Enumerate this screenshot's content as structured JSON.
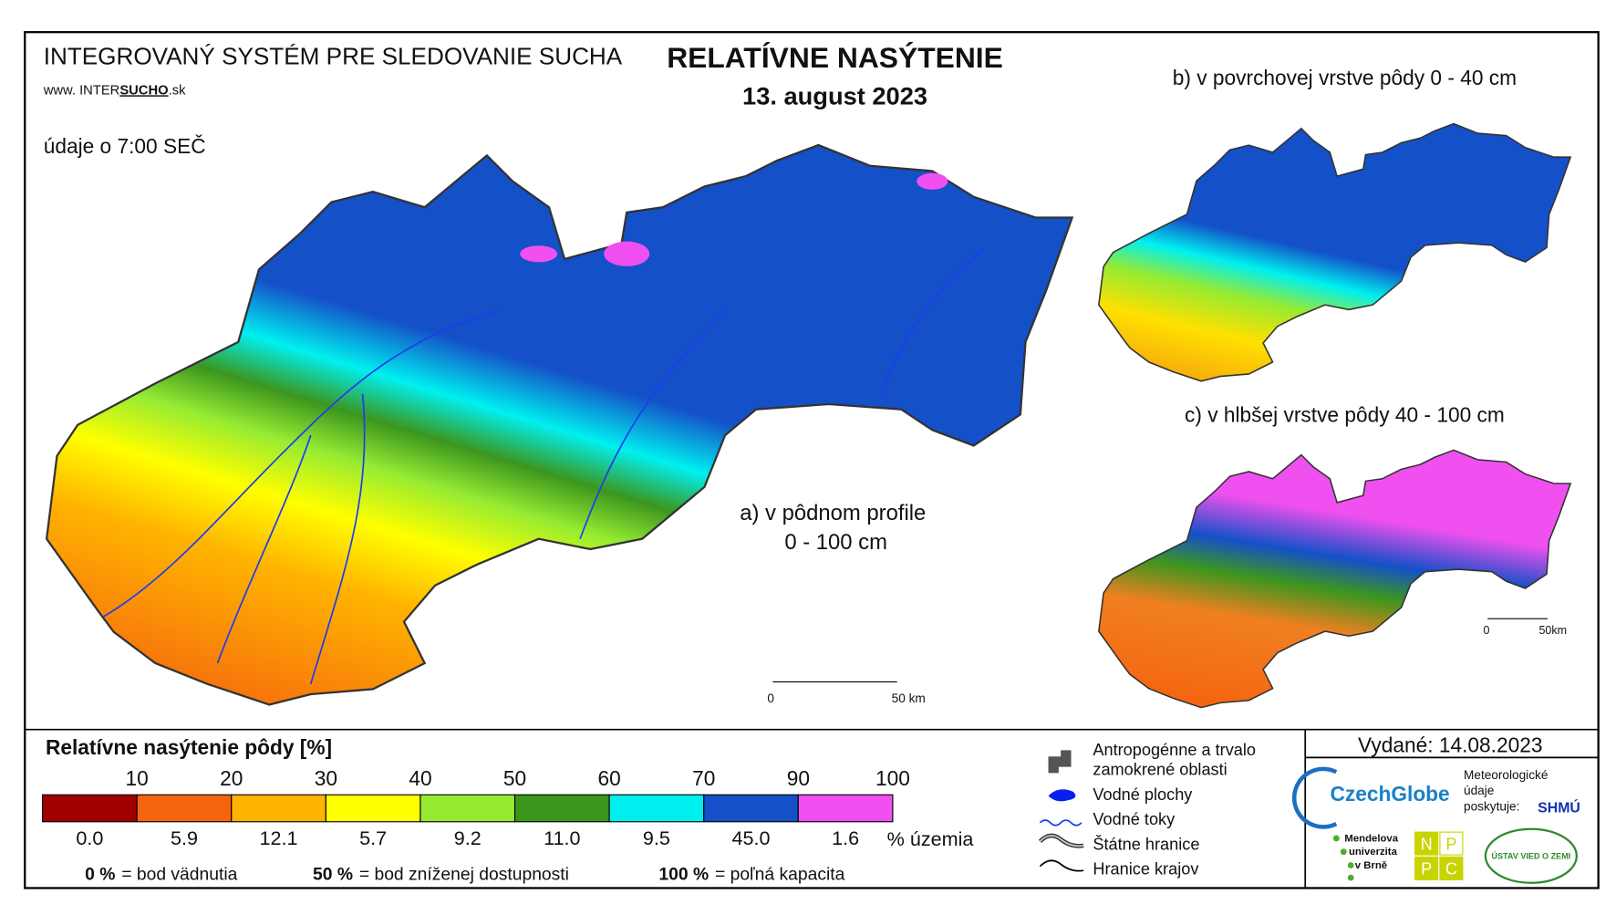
{
  "header": {
    "system": "INTEGROVANÝ SYSTÉM PRE SLEDOVANIE SUCHA",
    "web": [
      "www.",
      "INTER",
      "SUCHO",
      ".sk"
    ],
    "time_note": "údaje o 7:00 SEČ",
    "title": "RELATÍVNE NASÝTENIE",
    "date": "13. august 2023"
  },
  "maps": {
    "a": {
      "label": [
        "a) v pôdnom profile",
        "0 - 100 cm"
      ],
      "scale": [
        "0",
        "50 km"
      ]
    },
    "b": {
      "label": "b) v povrchovej vrstve pôdy 0 - 40 cm"
    },
    "c": {
      "label": "c) v hlbšej vrstve pôdy 40 - 100 cm",
      "scale": [
        "0",
        "50km"
      ]
    }
  },
  "legend": {
    "title": "Relatívne nasýtenie pôdy [%]",
    "bounds": [
      10,
      20,
      30,
      40,
      50,
      60,
      70,
      90,
      100
    ],
    "colors": [
      "#a00000",
      "#f5640f",
      "#ffb400",
      "#ffff00",
      "#96eb32",
      "#3c961e",
      "#00f0f0",
      "#1450c8",
      "#f050f0"
    ],
    "shares": [
      {
        "value": 0,
        "label": "0.0"
      },
      5.9,
      12.1,
      5.7,
      9.2,
      {
        "value": 11,
        "label": "11.0"
      },
      9.5,
      {
        "value": 45,
        "label": "45.0"
      },
      1.6
    ],
    "shares_unit": "% územia",
    "notes": [
      {
        "key": "0 %",
        "text": "= bod vädnutia"
      },
      {
        "key": "50 %",
        "text": "= bod zníženej dostupnosti"
      },
      {
        "key": "100 %",
        "text": "= poľná kapacita"
      }
    ]
  },
  "symbols": [
    "Antropogénne a trvalo zamokrené oblasti",
    "Vodné plochy",
    "Vodné toky",
    "Štátne hranice",
    "Hranice krajov"
  ],
  "issued": "Vydané: 14.08.2023",
  "logos": {
    "czechglobe": "CzechGlobe",
    "meteo": "Meteorologické údaje poskytuje:",
    "shmu": "SHMÚ",
    "mendel": [
      "Mendelova",
      "univerzita",
      "v Brně"
    ],
    "nppc": [
      "N",
      "P",
      "P",
      "C"
    ],
    "uvz": "ÚSTAV VIED O ZEMI"
  }
}
